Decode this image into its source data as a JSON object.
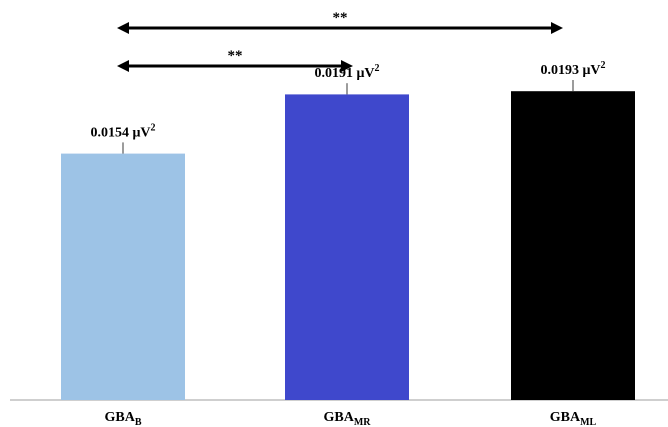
{
  "chart_data": {
    "type": "bar",
    "categories": [
      {
        "base": "GBA",
        "sub": "B"
      },
      {
        "base": "GBA",
        "sub": "MR"
      },
      {
        "base": "GBA",
        "sub": "ML"
      }
    ],
    "values": [
      0.0154,
      0.0191,
      0.0193
    ],
    "error": [
      0.0002,
      0.0002,
      0.0002
    ],
    "data_labels": [
      {
        "num": "0.0154",
        "unit": "μV",
        "exp": "2"
      },
      {
        "num": "0.0191",
        "unit": "μV",
        "exp": "2"
      },
      {
        "num": "0.0193",
        "unit": "μV",
        "exp": "2"
      }
    ],
    "colors": [
      "#9dc3e6",
      "#3f48cc",
      "#000000"
    ],
    "ylim": [
      0,
      0.0225
    ],
    "grid": false,
    "significance": [
      {
        "from": 0,
        "to": 2,
        "label": "**"
      },
      {
        "from": 0,
        "to": 1,
        "label": "**"
      }
    ]
  }
}
